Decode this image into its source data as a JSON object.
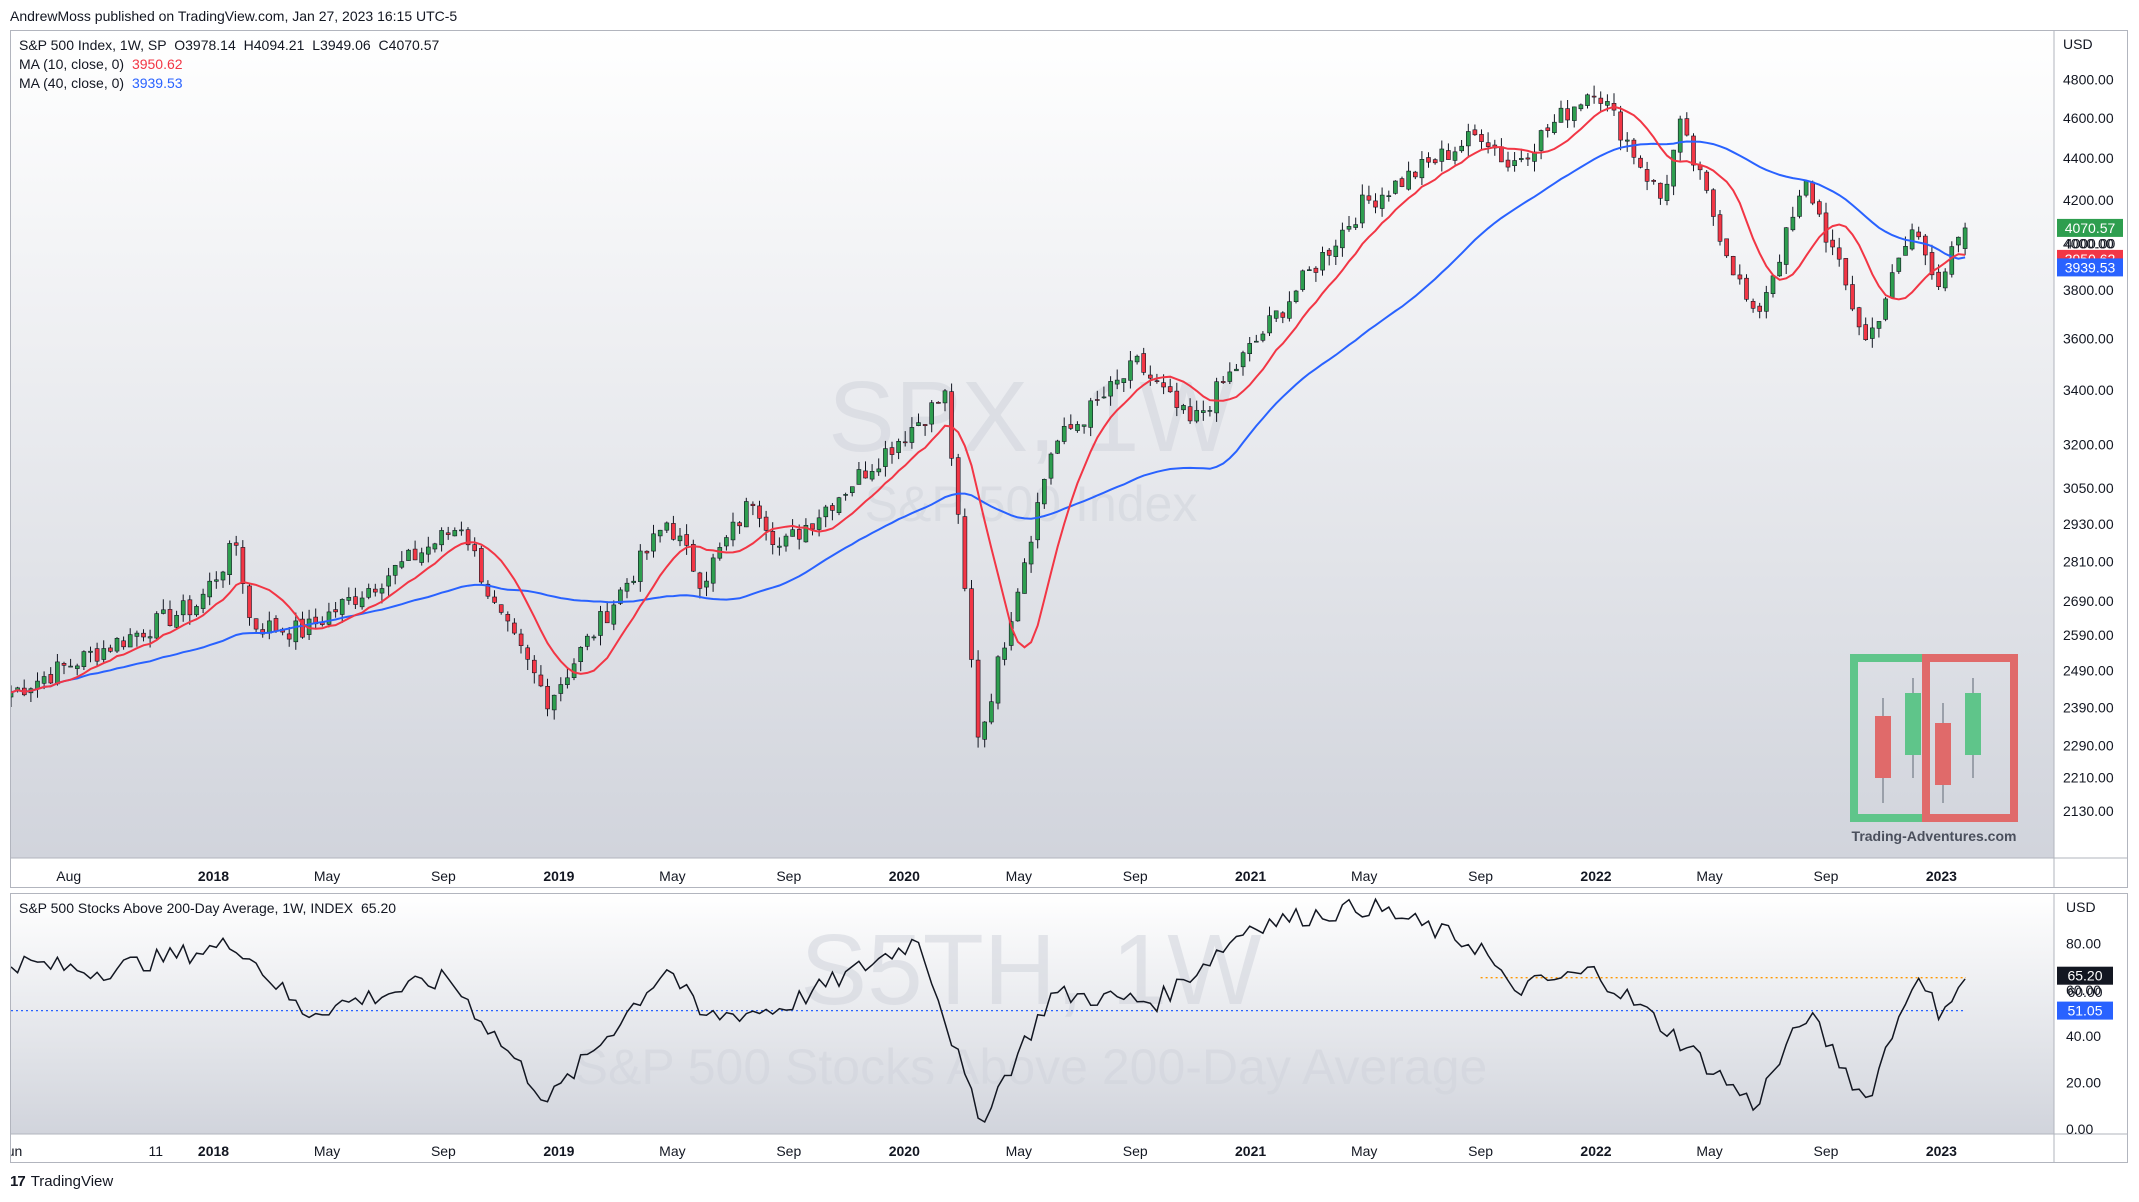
{
  "header": {
    "publisher_line": "AndrewMoss published on TradingView.com, Jan 27, 2023 16:15 UTC-5"
  },
  "panel1": {
    "legend_main": "S&P 500 Index, 1W, SP",
    "ohlc": {
      "o": "O3978.14",
      "h": "H4094.21",
      "l": "L3949.06",
      "c": "C4070.57"
    },
    "ma10_label": "MA (10, close, 0)",
    "ma10_value": "3950.62",
    "ma40_label": "MA (40, close, 0)",
    "ma40_value": "3939.53",
    "watermark_symbol": "SPX, 1W",
    "watermark_name": "S&P 500 Index",
    "currency": "USD",
    "price_badges": [
      {
        "text": "4070.57",
        "color": "#2e9e4f"
      },
      {
        "text": "4000.00",
        "color": "#ffffff"
      },
      {
        "text": "3950.62",
        "color": "#f23645"
      },
      {
        "text": "3939.53",
        "color": "#2962ff"
      }
    ],
    "logo_caption": "Trading-Adventures.com"
  },
  "panel2": {
    "legend_main": "S&P 500 Stocks Above 200-Day Average, 1W, INDEX",
    "last_value": "65.20",
    "watermark_symbol": "S5TH, 1W",
    "watermark_name": "S&P 500 Stocks Above 200-Day Average",
    "currency": "USD",
    "badges": [
      {
        "text": "65.20",
        "color": "#131722"
      },
      {
        "text": "60.00",
        "color": "#ffffff"
      },
      {
        "text": "51.05",
        "color": "#2962ff"
      }
    ]
  },
  "footer": {
    "brand": "TradingView",
    "logo": "17"
  },
  "colors": {
    "up": "#2e9e4f",
    "down": "#f23645",
    "ma10": "#f23645",
    "ma40": "#2962ff",
    "line": "#131722",
    "hline_dotted": "#2962ff",
    "hline_orange": "#ff9800"
  },
  "chart_data": [
    {
      "type": "candlestick",
      "title": "S&P 500 Index, 1W, SP",
      "y_axis_ticks": [
        4800,
        4600,
        4400,
        4200,
        4000,
        3800,
        3600,
        3400,
        3200,
        3050,
        2930,
        2810,
        2690,
        2590,
        2490,
        2390,
        2290,
        2210,
        2130
      ],
      "y_axis_tick_labels": [
        "4800.00",
        "4600.00",
        "4400.00",
        "4200.00",
        "4000.00",
        "3800.00",
        "3600.00",
        "3400.00",
        "3200.00",
        "3050.00",
        "2930.00",
        "2810.00",
        "2690.00",
        "2590.00",
        "2490.00",
        "2390.00",
        "2290.00",
        "2210.00",
        "2130.00"
      ],
      "y_scale": "log",
      "x_axis_labels": [
        "Aug",
        "2018",
        "May",
        "Sep",
        "2019",
        "May",
        "Sep",
        "2020",
        "May",
        "Sep",
        "2021",
        "May",
        "Sep",
        "2022",
        "May",
        "Sep",
        "2023"
      ],
      "x_axis_label_dates": [
        "2017-08-01",
        "2018-01-01",
        "2018-05-01",
        "2018-09-01",
        "2019-01-01",
        "2019-05-01",
        "2019-09-01",
        "2020-01-01",
        "2020-05-01",
        "2020-09-01",
        "2021-01-01",
        "2021-05-01",
        "2021-09-01",
        "2022-01-01",
        "2022-05-01",
        "2022-09-01",
        "2023-01-01"
      ],
      "key_points": [
        {
          "date": "2017-06-01",
          "close": 2430
        },
        {
          "date": "2017-12-15",
          "close": 2680
        },
        {
          "date": "2018-01-26",
          "close": 2870
        },
        {
          "date": "2018-02-09",
          "close": 2620
        },
        {
          "date": "2018-04-06",
          "close": 2600
        },
        {
          "date": "2018-09-21",
          "close": 2930
        },
        {
          "date": "2018-10-26",
          "close": 2660
        },
        {
          "date": "2018-12-21",
          "close": 2410
        },
        {
          "date": "2019-04-26",
          "close": 2940
        },
        {
          "date": "2019-06-01",
          "close": 2750
        },
        {
          "date": "2019-07-26",
          "close": 3020
        },
        {
          "date": "2019-08-23",
          "close": 2850
        },
        {
          "date": "2020-02-14",
          "close": 3380
        },
        {
          "date": "2020-03-20",
          "close": 2300
        },
        {
          "date": "2020-06-05",
          "close": 3190
        },
        {
          "date": "2020-09-04",
          "close": 3500
        },
        {
          "date": "2020-10-30",
          "close": 3270
        },
        {
          "date": "2021-04-30",
          "close": 4180
        },
        {
          "date": "2021-09-03",
          "close": 4530
        },
        {
          "date": "2021-10-01",
          "close": 4360
        },
        {
          "date": "2021-12-31",
          "close": 4770
        },
        {
          "date": "2022-03-11",
          "close": 4200
        },
        {
          "date": "2022-03-31",
          "close": 4550
        },
        {
          "date": "2022-06-17",
          "close": 3670
        },
        {
          "date": "2022-08-12",
          "close": 4280
        },
        {
          "date": "2022-10-14",
          "close": 3580
        },
        {
          "date": "2022-12-02",
          "close": 4070
        },
        {
          "date": "2022-12-30",
          "close": 3840
        },
        {
          "date": "2023-01-27",
          "close": 4070.57
        }
      ],
      "last_ohlc": {
        "open": 3978.14,
        "high": 4094.21,
        "low": 3949.06,
        "close": 4070.57
      },
      "series": [
        {
          "name": "MA (10, close, 0)",
          "last": 3950.62
        },
        {
          "name": "MA (40, close, 0)",
          "last": 3939.53
        }
      ]
    },
    {
      "type": "line",
      "title": "S&P 500 Stocks Above 200-Day Average, 1W, INDEX",
      "y_axis_ticks": [
        80,
        60,
        40,
        20,
        0
      ],
      "y_axis_tick_labels": [
        "80.00",
        "60.00",
        "40.00",
        "20.00",
        "0.00"
      ],
      "ylim": [
        0,
        100
      ],
      "x_axis_labels": [
        "Jun",
        "11",
        "2018",
        "May",
        "Sep",
        "2019",
        "May",
        "Sep",
        "2020",
        "May",
        "Sep",
        "2021",
        "May",
        "Sep",
        "2022",
        "May",
        "Sep",
        "2023"
      ],
      "x_axis_label_dates": [
        "2017-06-01",
        "2017-11-01",
        "2018-01-01",
        "2018-05-01",
        "2018-09-01",
        "2019-01-01",
        "2019-05-01",
        "2019-09-01",
        "2020-01-01",
        "2020-05-01",
        "2020-09-01",
        "2021-01-01",
        "2021-05-01",
        "2021-09-01",
        "2022-01-01",
        "2022-05-01",
        "2022-09-01",
        "2023-01-01"
      ],
      "key_points": [
        {
          "date": "2017-06-01",
          "value": 72
        },
        {
          "date": "2017-09-01",
          "value": 68
        },
        {
          "date": "2018-01-26",
          "value": 80
        },
        {
          "date": "2018-04-06",
          "value": 50
        },
        {
          "date": "2018-09-07",
          "value": 65
        },
        {
          "date": "2018-10-26",
          "value": 40
        },
        {
          "date": "2018-12-21",
          "value": 12
        },
        {
          "date": "2019-04-26",
          "value": 70
        },
        {
          "date": "2019-06-01",
          "value": 48
        },
        {
          "date": "2019-08-23",
          "value": 52
        },
        {
          "date": "2020-01-17",
          "value": 82
        },
        {
          "date": "2020-03-20",
          "value": 3
        },
        {
          "date": "2020-06-05",
          "value": 58
        },
        {
          "date": "2020-09-25",
          "value": 55
        },
        {
          "date": "2021-01-01",
          "value": 88
        },
        {
          "date": "2021-05-07",
          "value": 96
        },
        {
          "date": "2021-09-03",
          "value": 78
        },
        {
          "date": "2021-10-01",
          "value": 60
        },
        {
          "date": "2021-12-31",
          "value": 68
        },
        {
          "date": "2022-03-11",
          "value": 45
        },
        {
          "date": "2022-06-17",
          "value": 10
        },
        {
          "date": "2022-08-12",
          "value": 50
        },
        {
          "date": "2022-10-14",
          "value": 12
        },
        {
          "date": "2022-12-02",
          "value": 65
        },
        {
          "date": "2022-12-30",
          "value": 51
        },
        {
          "date": "2023-01-27",
          "value": 65.2
        }
      ],
      "reference_lines": [
        {
          "value": 51.05,
          "style": "dotted",
          "color": "#2962ff"
        },
        {
          "value": 65.2,
          "style": "dotted",
          "color": "#ff9800",
          "from_date": "2021-09-01"
        }
      ],
      "series": [
        {
          "name": "S&P 500 Stocks Above 200-Day Average",
          "last": 65.2
        }
      ]
    }
  ]
}
